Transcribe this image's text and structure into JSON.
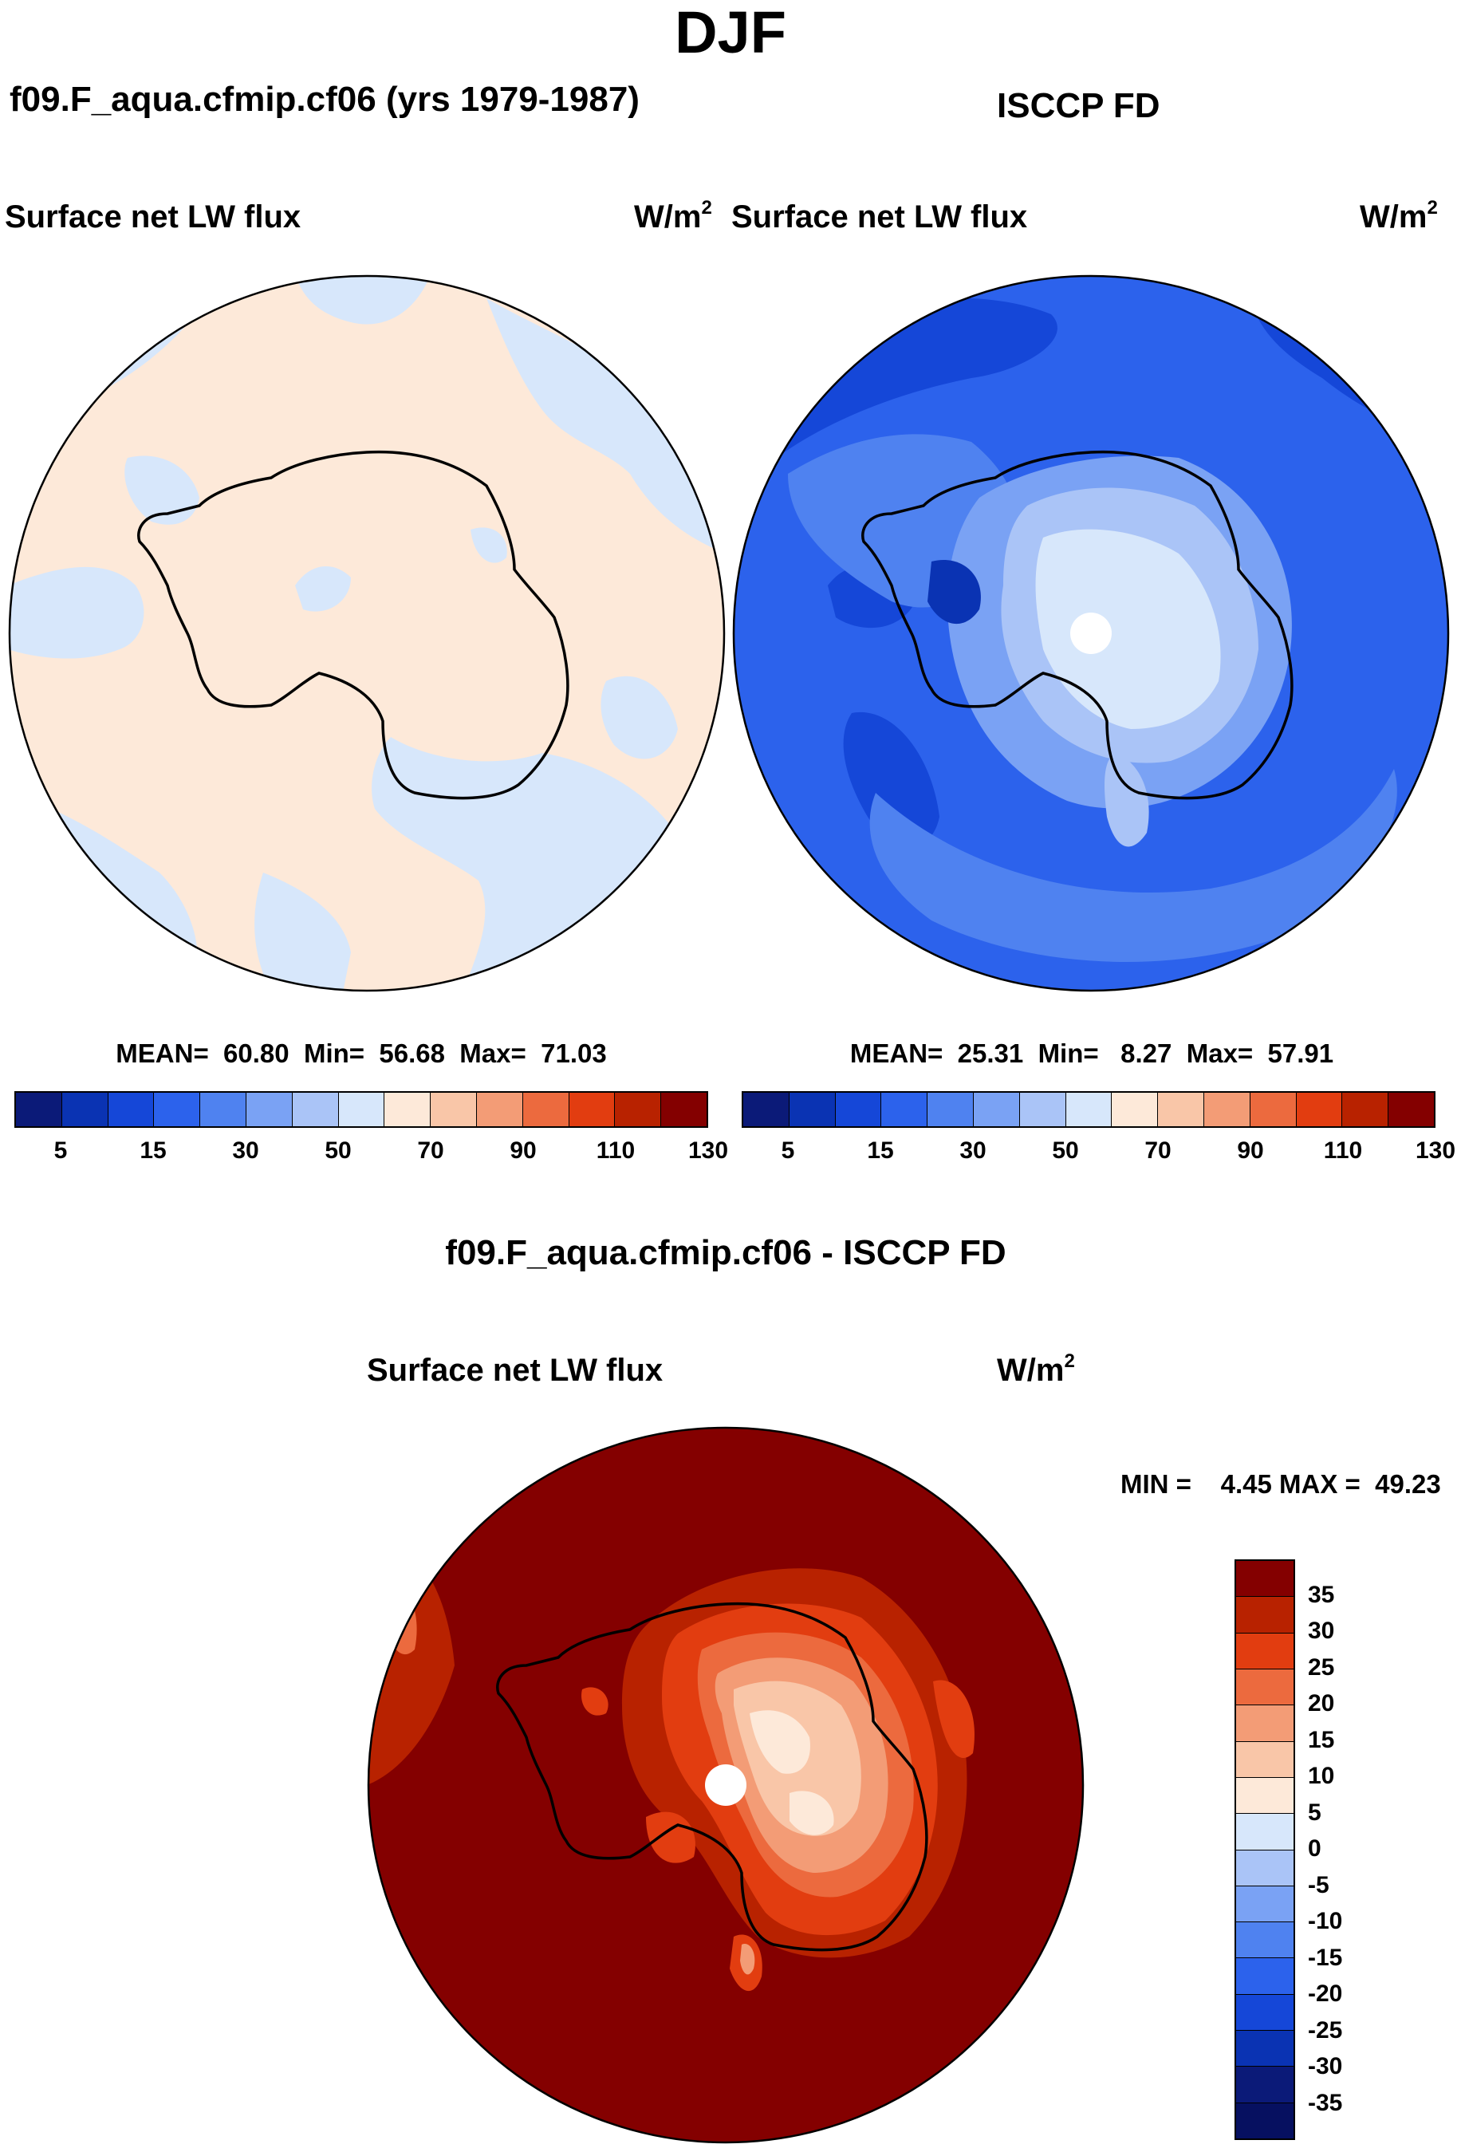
{
  "figure": {
    "season": "DJF",
    "left_title": "f09.F_aqua.cfmip.cf06 (yrs 1979-1987)",
    "right_title": "ISCCP FD",
    "diff_title": "f09.F_aqua.cfmip.cf06 - ISCCP FD"
  },
  "panels": {
    "model": {
      "variable": "Surface net LW flux",
      "units_base": "W/m",
      "units_exp": "2",
      "stats": "MEAN=  60.80  Min=  56.68  Max=  71.03"
    },
    "obs": {
      "variable": "Surface net LW flux",
      "units_base": "W/m",
      "units_exp": "2",
      "stats": "MEAN=  25.31  Min=   8.27  Max=  57.91"
    },
    "diff": {
      "variable": "Surface net LW flux",
      "units_base": "W/m",
      "units_exp": "2",
      "stats": "MIN =    4.45 MAX =  49.23"
    }
  },
  "chart_data": [
    {
      "type": "heatmap",
      "projection": "south polar stereographic",
      "title": "Surface net LW flux",
      "units": "W/m2",
      "mean": 60.8,
      "min": 56.68,
      "max": 71.03,
      "levels": [
        5,
        10,
        15,
        20,
        30,
        40,
        50,
        60,
        70,
        80,
        90,
        100,
        110,
        120,
        130
      ],
      "tick_labels": [
        "5",
        "15",
        "30",
        "50",
        "70",
        "90",
        "110",
        "130"
      ],
      "colors": [
        "#0b1a78",
        "#0a33b3",
        "#1547d8",
        "#2c62ec",
        "#4f82f0",
        "#7aa2f4",
        "#aac4f7",
        "#d7e7fb",
        "#fde9d9",
        "#f9c6a8",
        "#f39c76",
        "#ec6a3e",
        "#e23d10",
        "#b82200",
        "#840000"
      ]
    },
    {
      "type": "heatmap",
      "projection": "south polar stereographic",
      "title": "Surface net LW flux",
      "units": "W/m2",
      "mean": 25.31,
      "min": 8.27,
      "max": 57.91,
      "levels": [
        5,
        10,
        15,
        20,
        30,
        40,
        50,
        60,
        70,
        80,
        90,
        100,
        110,
        120,
        130
      ],
      "tick_labels": [
        "5",
        "15",
        "30",
        "50",
        "70",
        "90",
        "110",
        "130"
      ],
      "colors": [
        "#0b1a78",
        "#0a33b3",
        "#1547d8",
        "#2c62ec",
        "#4f82f0",
        "#7aa2f4",
        "#aac4f7",
        "#d7e7fb",
        "#fde9d9",
        "#f9c6a8",
        "#f39c76",
        "#ec6a3e",
        "#e23d10",
        "#b82200",
        "#840000"
      ]
    },
    {
      "type": "heatmap",
      "projection": "south polar stereographic",
      "title": "f09.F_aqua.cfmip.cf06 - ISCCP FD",
      "units": "W/m2",
      "min": 4.45,
      "max": 49.23,
      "levels": [
        -35,
        -30,
        -25,
        -20,
        -15,
        -10,
        -5,
        0,
        5,
        10,
        15,
        20,
        25,
        30,
        35
      ],
      "tick_labels": [
        "35",
        "30",
        "25",
        "20",
        "15",
        "10",
        "5",
        "0",
        "-5",
        "-10",
        "-15",
        "-20",
        "-25",
        "-30",
        "-35"
      ],
      "colors": [
        "#840000",
        "#b82200",
        "#e23d10",
        "#ec6a3e",
        "#f39c76",
        "#f9c6a8",
        "#fde9d9",
        "#d7e7fb",
        "#aac4f7",
        "#7aa2f4",
        "#4f82f0",
        "#2c62ec",
        "#1547d8",
        "#0a33b3",
        "#0b1a78",
        "#061060"
      ]
    }
  ]
}
